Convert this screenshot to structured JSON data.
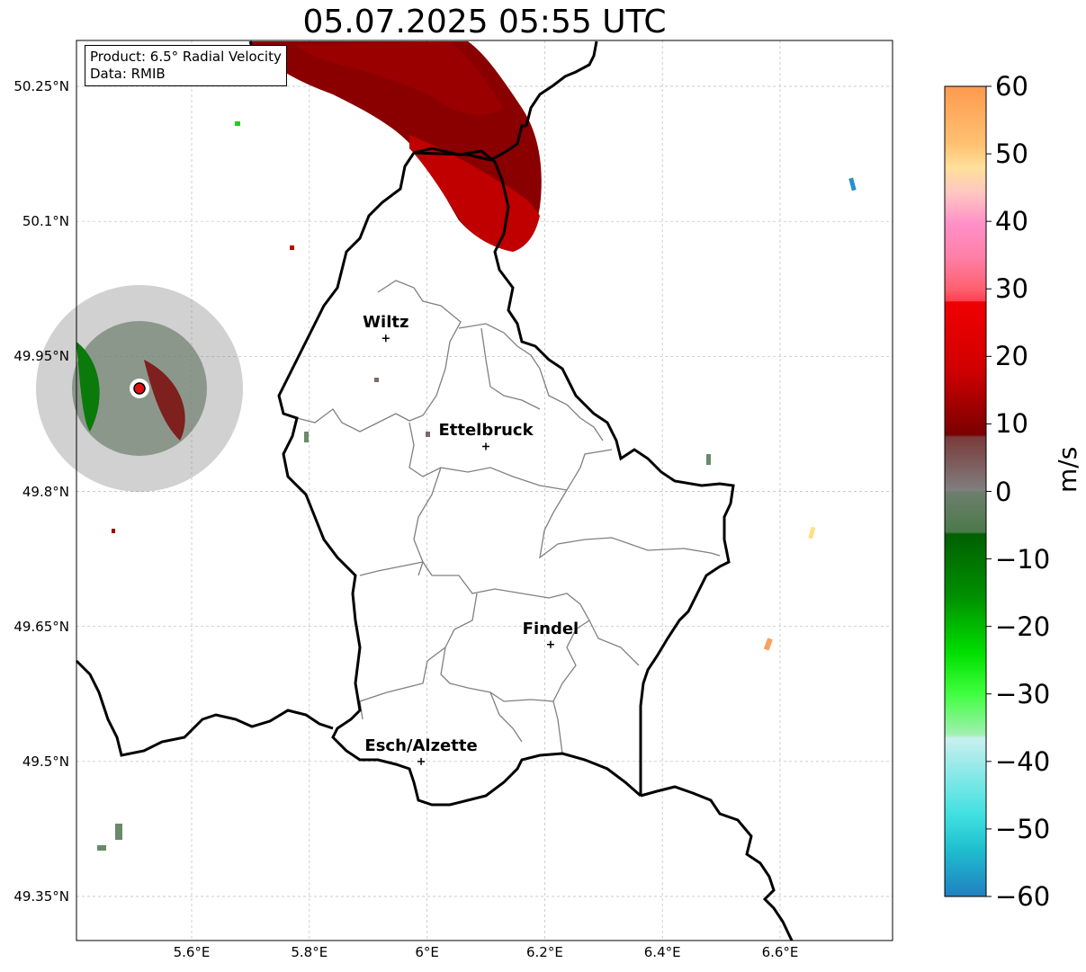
{
  "title": "05.07.2025 05:55 UTC",
  "info": {
    "product": "Product: 6.5° Radial Velocity",
    "data": "Data: RMIB"
  },
  "lat_ticks": [
    "50.25°N",
    "50.1°N",
    "49.95°N",
    "49.8°N",
    "49.65°N",
    "49.5°N",
    "49.35°N"
  ],
  "lon_ticks": [
    "5.6°E",
    "5.8°E",
    "6°E",
    "6.2°E",
    "6.4°E",
    "6.6°E"
  ],
  "cities": [
    {
      "name": "Wiltz",
      "lon": 5.93,
      "lat": 49.97
    },
    {
      "name": "Ettelbruck",
      "lon": 6.1,
      "lat": 49.85
    },
    {
      "name": "Findel",
      "lon": 6.21,
      "lat": 49.63
    },
    {
      "name": "Esch/Alzette",
      "lon": 5.99,
      "lat": 49.5
    }
  ],
  "colorbar": {
    "unit": "m/s",
    "ticks": [
      "60",
      "50",
      "40",
      "30",
      "20",
      "10",
      "0",
      "−10",
      "−20",
      "−30",
      "−40",
      "−50",
      "−60"
    ],
    "range": [
      -60,
      60
    ]
  },
  "colors": {
    "border": "#000000",
    "district": "#808080",
    "radar_site": "#e01010"
  }
}
